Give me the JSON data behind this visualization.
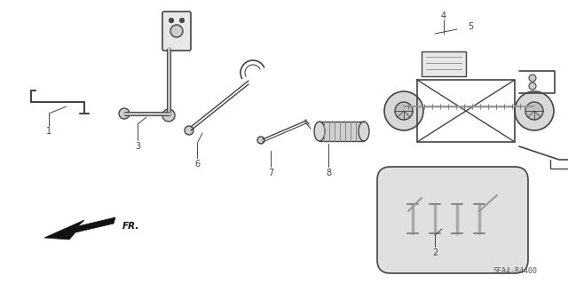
{
  "bg_color": "#ffffff",
  "line_color": "#444444",
  "dark_color": "#111111",
  "label_color": "#222222",
  "diagram_code": "SEA4-B4400",
  "fig_width": 6.4,
  "fig_height": 3.19,
  "dpi": 100
}
